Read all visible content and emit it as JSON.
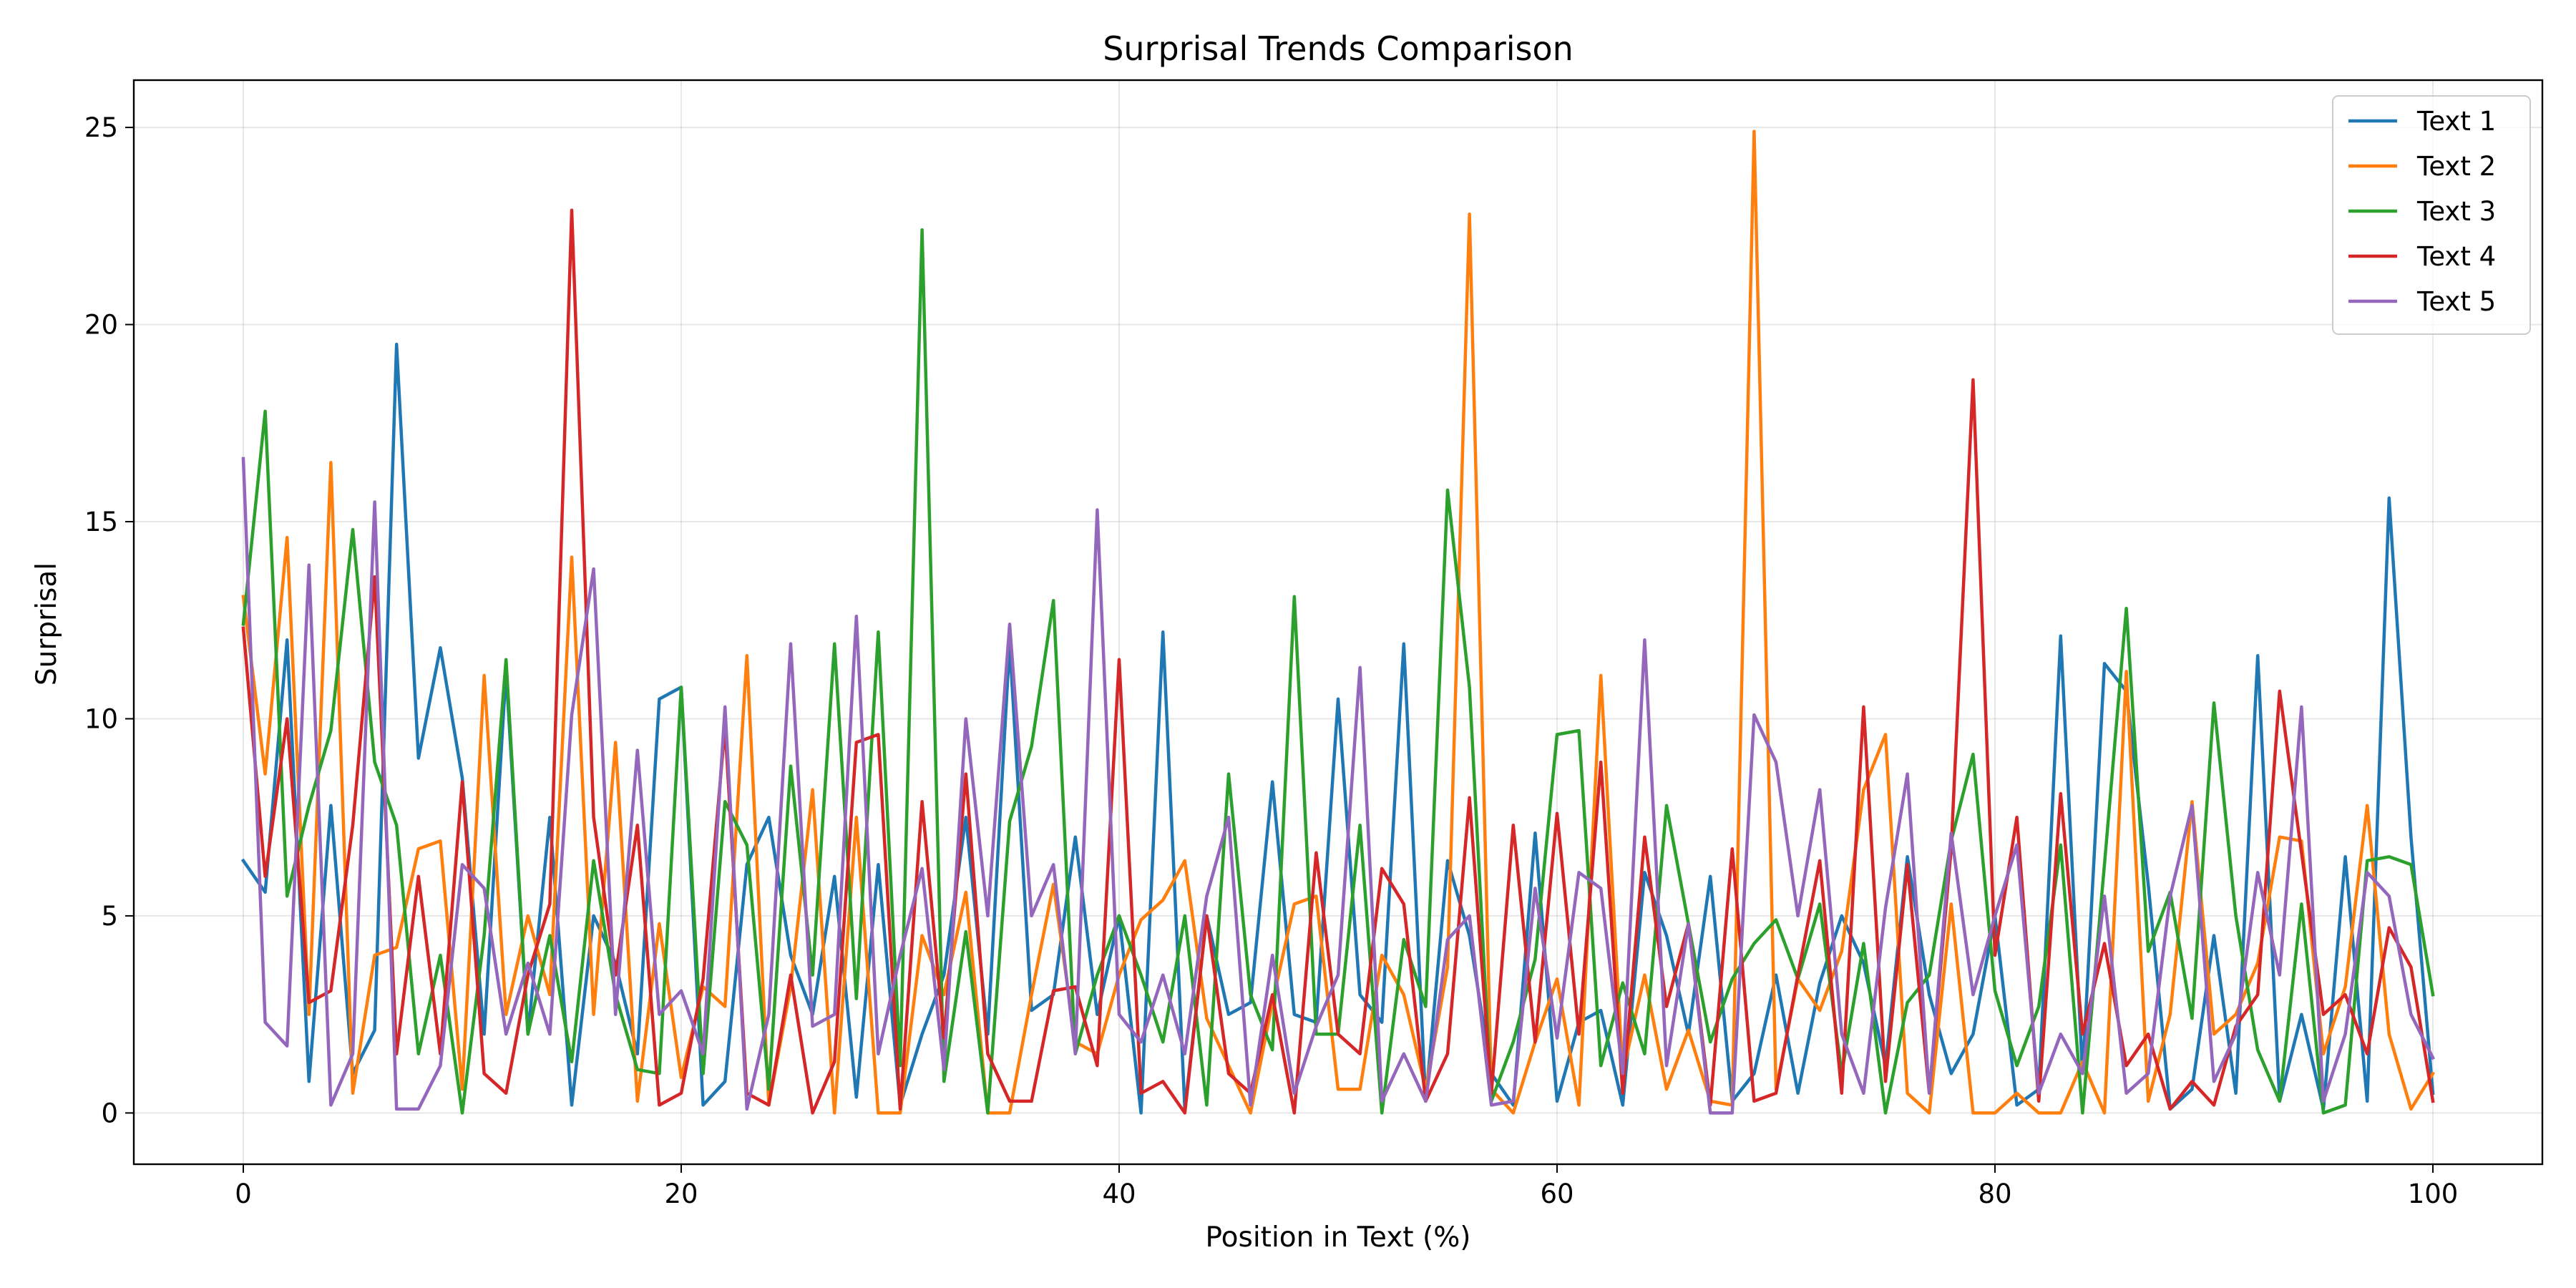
{
  "chart_data": {
    "type": "line",
    "title": "Surprisal Trends Comparison",
    "xlabel": "Position in Text (%)",
    "ylabel": "Surprisal",
    "xlim": [
      -5,
      105
    ],
    "ylim": [
      -1.3,
      26.2
    ],
    "xticks": [
      0,
      20,
      40,
      60,
      80,
      100
    ],
    "yticks": [
      0,
      5,
      10,
      15,
      20,
      25
    ],
    "grid": true,
    "legend_position": "top-right",
    "series": [
      {
        "name": "Text 1",
        "color": "#1f77b4",
        "x": [
          0,
          1,
          2,
          3,
          4,
          5,
          6,
          7,
          8,
          9,
          10,
          11,
          12,
          13,
          14,
          15,
          16,
          17,
          18,
          19,
          20,
          21,
          22,
          23,
          24,
          25,
          26,
          27,
          28,
          29,
          30,
          31,
          32,
          33,
          34,
          35,
          36,
          37,
          38,
          39,
          40,
          41,
          42,
          43,
          44,
          45,
          46,
          47,
          48,
          49,
          50,
          51,
          52,
          53,
          54,
          55,
          56,
          57,
          58,
          59,
          60,
          61,
          62,
          63,
          64,
          65,
          66,
          67,
          68,
          69,
          70,
          71,
          72,
          73,
          74,
          75,
          76,
          77,
          78,
          79,
          80,
          81,
          82,
          83,
          84,
          85,
          86,
          87,
          88,
          89,
          90,
          91,
          92,
          93,
          94,
          95,
          96,
          97,
          98,
          99,
          100
        ],
        "values": [
          6.4,
          5.6,
          12.0,
          0.8,
          7.8,
          1.0,
          2.1,
          19.5,
          9.0,
          11.8,
          8.5,
          2.0,
          11.2,
          2.0,
          7.5,
          0.2,
          5.0,
          3.8,
          1.5,
          10.5,
          10.8,
          0.2,
          0.8,
          6.3,
          7.5,
          4.0,
          2.5,
          6.0,
          0.4,
          6.3,
          0.2,
          2.0,
          3.5,
          7.5,
          2.0,
          11.9,
          2.6,
          3.0,
          7.0,
          2.5,
          5.0,
          0.0,
          12.2,
          0.1,
          5.0,
          2.5,
          2.8,
          8.4,
          2.5,
          2.3,
          10.5,
          3.0,
          2.3,
          11.9,
          0.3,
          6.4,
          4.5,
          1.0,
          0.2,
          7.1,
          0.3,
          2.3,
          2.6,
          0.2,
          6.1,
          4.5,
          2.0,
          6.0,
          0.3,
          1.0,
          3.5,
          0.5,
          3.3,
          5.0,
          3.8,
          1.2,
          6.5,
          3.0,
          1.0,
          2.0,
          5.0,
          0.2,
          0.6,
          12.1,
          1.0,
          11.4,
          10.7,
          5.8,
          0.1,
          0.6,
          4.5,
          0.5,
          11.6,
          0.3,
          2.5,
          0.1,
          6.5,
          0.3,
          15.6,
          7.0,
          0.5
        ]
      },
      {
        "name": "Text 2",
        "color": "#ff7f0e",
        "x": [
          0,
          1,
          2,
          3,
          4,
          5,
          6,
          7,
          8,
          9,
          10,
          11,
          12,
          13,
          14,
          15,
          16,
          17,
          18,
          19,
          20,
          21,
          22,
          23,
          24,
          25,
          26,
          27,
          28,
          29,
          30,
          31,
          32,
          33,
          34,
          35,
          36,
          37,
          38,
          39,
          40,
          41,
          42,
          43,
          44,
          45,
          46,
          47,
          48,
          49,
          50,
          51,
          52,
          53,
          54,
          55,
          56,
          57,
          58,
          59,
          60,
          61,
          62,
          63,
          64,
          65,
          66,
          67,
          68,
          69,
          70,
          71,
          72,
          73,
          74,
          75,
          76,
          77,
          78,
          79,
          80,
          81,
          82,
          83,
          84,
          85,
          86,
          87,
          88,
          89,
          90,
          91,
          92,
          93,
          94,
          95,
          96,
          97,
          98,
          99,
          100
        ],
        "values": [
          13.1,
          8.6,
          14.6,
          2.5,
          16.5,
          0.5,
          4.0,
          4.2,
          6.7,
          6.9,
          0.6,
          11.1,
          2.5,
          5.0,
          3.0,
          14.1,
          2.5,
          9.4,
          0.3,
          4.8,
          0.9,
          3.2,
          2.7,
          11.6,
          0.2,
          3.2,
          8.2,
          0.0,
          7.5,
          0.0,
          0.0,
          4.5,
          3.0,
          5.6,
          0.0,
          0.0,
          3.0,
          5.8,
          1.8,
          1.5,
          3.5,
          4.9,
          5.4,
          6.4,
          2.4,
          1.2,
          0.0,
          2.8,
          5.3,
          5.5,
          0.6,
          0.6,
          4.0,
          3.0,
          0.6,
          3.7,
          22.8,
          0.6,
          0.0,
          1.8,
          3.4,
          0.2,
          11.1,
          1.0,
          3.5,
          0.6,
          2.1,
          0.3,
          0.2,
          24.9,
          0.6,
          3.4,
          2.6,
          4.1,
          8.2,
          9.6,
          0.5,
          0.0,
          5.3,
          0.0,
          0.0,
          0.5,
          0.0,
          0.0,
          1.3,
          0.0,
          11.2,
          0.3,
          2.5,
          7.9,
          2.0,
          2.5,
          3.8,
          7.0,
          6.9,
          1.5,
          3.2,
          7.8,
          2.0,
          0.1,
          1.0
        ]
      },
      {
        "name": "Text 3",
        "color": "#2ca02c",
        "x": [
          0,
          1,
          2,
          3,
          4,
          5,
          6,
          7,
          8,
          9,
          10,
          11,
          12,
          13,
          14,
          15,
          16,
          17,
          18,
          19,
          20,
          21,
          22,
          23,
          24,
          25,
          26,
          27,
          28,
          29,
          30,
          31,
          32,
          33,
          34,
          35,
          36,
          37,
          38,
          39,
          40,
          41,
          42,
          43,
          44,
          45,
          46,
          47,
          48,
          49,
          50,
          51,
          52,
          53,
          54,
          55,
          56,
          57,
          58,
          59,
          60,
          61,
          62,
          63,
          64,
          65,
          66,
          67,
          68,
          69,
          70,
          71,
          72,
          73,
          74,
          75,
          76,
          77,
          78,
          79,
          80,
          81,
          82,
          83,
          84,
          85,
          86,
          87,
          88,
          89,
          90,
          91,
          92,
          93,
          94,
          95,
          96,
          97,
          98,
          99,
          100
        ],
        "values": [
          12.4,
          17.8,
          5.5,
          7.8,
          9.7,
          14.8,
          8.9,
          7.3,
          1.5,
          4.0,
          0.0,
          4.5,
          11.5,
          2.0,
          4.5,
          1.3,
          6.4,
          3.0,
          1.1,
          1.0,
          10.8,
          1.0,
          7.9,
          6.8,
          0.6,
          8.8,
          3.5,
          11.9,
          2.9,
          12.2,
          1.2,
          22.4,
          0.8,
          4.6,
          0.0,
          7.4,
          9.3,
          13.0,
          1.5,
          3.5,
          5.0,
          3.5,
          1.8,
          5.0,
          0.2,
          8.6,
          3.0,
          1.6,
          13.1,
          2.0,
          2.0,
          7.3,
          0.0,
          4.4,
          2.7,
          15.8,
          10.8,
          0.3,
          1.8,
          3.9,
          9.6,
          9.7,
          1.2,
          3.3,
          1.5,
          7.8,
          4.8,
          1.8,
          3.4,
          4.3,
          4.9,
          3.4,
          5.3,
          1.0,
          4.3,
          0.0,
          2.8,
          3.5,
          6.9,
          9.1,
          3.1,
          1.2,
          2.7,
          6.8,
          0.0,
          6.3,
          12.8,
          4.1,
          5.6,
          2.4,
          10.4,
          5.0,
          1.6,
          0.3,
          5.3,
          0.0,
          0.2,
          6.4,
          6.5,
          6.3,
          3.0
        ]
      },
      {
        "name": "Text 4",
        "color": "#d62728",
        "x": [
          0,
          1,
          2,
          3,
          4,
          5,
          6,
          7,
          8,
          9,
          10,
          11,
          12,
          13,
          14,
          15,
          16,
          17,
          18,
          19,
          20,
          21,
          22,
          23,
          24,
          25,
          26,
          27,
          28,
          29,
          30,
          31,
          32,
          33,
          34,
          35,
          36,
          37,
          38,
          39,
          40,
          41,
          42,
          43,
          44,
          45,
          46,
          47,
          48,
          49,
          50,
          51,
          52,
          53,
          54,
          55,
          56,
          57,
          58,
          59,
          60,
          61,
          62,
          63,
          64,
          65,
          66,
          67,
          68,
          69,
          70,
          71,
          72,
          73,
          74,
          75,
          76,
          77,
          78,
          79,
          80,
          81,
          82,
          83,
          84,
          85,
          86,
          87,
          88,
          89,
          90,
          91,
          92,
          93,
          94,
          95,
          96,
          97,
          98,
          99,
          100
        ],
        "values": [
          12.3,
          6.0,
          10.0,
          2.8,
          3.1,
          7.3,
          13.6,
          1.5,
          6.0,
          1.5,
          8.4,
          1.0,
          0.5,
          3.5,
          5.3,
          22.9,
          7.5,
          3.5,
          7.3,
          0.2,
          0.5,
          3.4,
          9.8,
          0.5,
          0.2,
          3.5,
          0.0,
          1.3,
          9.4,
          9.6,
          0.1,
          7.9,
          1.9,
          8.6,
          1.5,
          0.3,
          0.3,
          3.1,
          3.2,
          1.2,
          11.5,
          0.5,
          0.8,
          0.0,
          5.0,
          1.0,
          0.5,
          3.0,
          0.0,
          6.6,
          2.0,
          1.5,
          6.2,
          5.3,
          0.3,
          1.5,
          8.0,
          0.5,
          7.3,
          1.8,
          7.6,
          2.0,
          8.9,
          0.5,
          7.0,
          2.7,
          4.8,
          0.2,
          6.7,
          0.3,
          0.5,
          3.5,
          6.4,
          0.5,
          10.3,
          0.8,
          6.3,
          0.5,
          6.7,
          18.6,
          4.0,
          7.5,
          0.3,
          8.1,
          2.0,
          4.3,
          1.2,
          2.0,
          0.1,
          0.8,
          0.2,
          2.2,
          3.0,
          10.7,
          6.6,
          2.5,
          3.0,
          1.5,
          4.7,
          3.7,
          0.3
        ]
      },
      {
        "name": "Text 5",
        "color": "#9467bd",
        "x": [
          0,
          1,
          2,
          3,
          4,
          5,
          6,
          7,
          8,
          9,
          10,
          11,
          12,
          13,
          14,
          15,
          16,
          17,
          18,
          19,
          20,
          21,
          22,
          23,
          24,
          25,
          26,
          27,
          28,
          29,
          30,
          31,
          32,
          33,
          34,
          35,
          36,
          37,
          38,
          39,
          40,
          41,
          42,
          43,
          44,
          45,
          46,
          47,
          48,
          49,
          50,
          51,
          52,
          53,
          54,
          55,
          56,
          57,
          58,
          59,
          60,
          61,
          62,
          63,
          64,
          65,
          66,
          67,
          68,
          69,
          70,
          71,
          72,
          73,
          74,
          75,
          76,
          77,
          78,
          79,
          80,
          81,
          82,
          83,
          84,
          85,
          86,
          87,
          88,
          89,
          90,
          91,
          92,
          93,
          94,
          95,
          96,
          97,
          98,
          99,
          100
        ],
        "values": [
          16.6,
          2.3,
          1.7,
          13.9,
          0.2,
          1.5,
          15.5,
          0.1,
          0.1,
          1.2,
          6.3,
          5.7,
          2.0,
          3.8,
          2.0,
          10.1,
          13.8,
          2.5,
          9.2,
          2.5,
          3.1,
          1.5,
          10.3,
          0.1,
          2.5,
          11.9,
          2.2,
          2.5,
          12.6,
          1.5,
          4.0,
          6.2,
          1.1,
          10.0,
          5.0,
          12.4,
          5.0,
          6.3,
          1.5,
          15.3,
          2.5,
          1.8,
          3.5,
          1.5,
          5.5,
          7.5,
          0.2,
          4.0,
          0.5,
          2.2,
          3.5,
          11.3,
          0.3,
          1.5,
          0.3,
          4.4,
          5.0,
          0.2,
          0.3,
          5.7,
          1.9,
          6.1,
          5.7,
          1.0,
          12.0,
          1.2,
          4.8,
          0.0,
          0.0,
          10.1,
          8.9,
          5.0,
          8.2,
          2.0,
          0.5,
          5.2,
          8.6,
          0.5,
          7.1,
          3.0,
          5.0,
          6.8,
          0.5,
          2.0,
          1.0,
          5.5,
          0.5,
          1.0,
          5.5,
          7.8,
          0.8,
          2.0,
          6.1,
          3.5,
          10.3,
          0.3,
          2.0,
          6.1,
          5.5,
          2.5,
          1.4
        ]
      }
    ]
  }
}
